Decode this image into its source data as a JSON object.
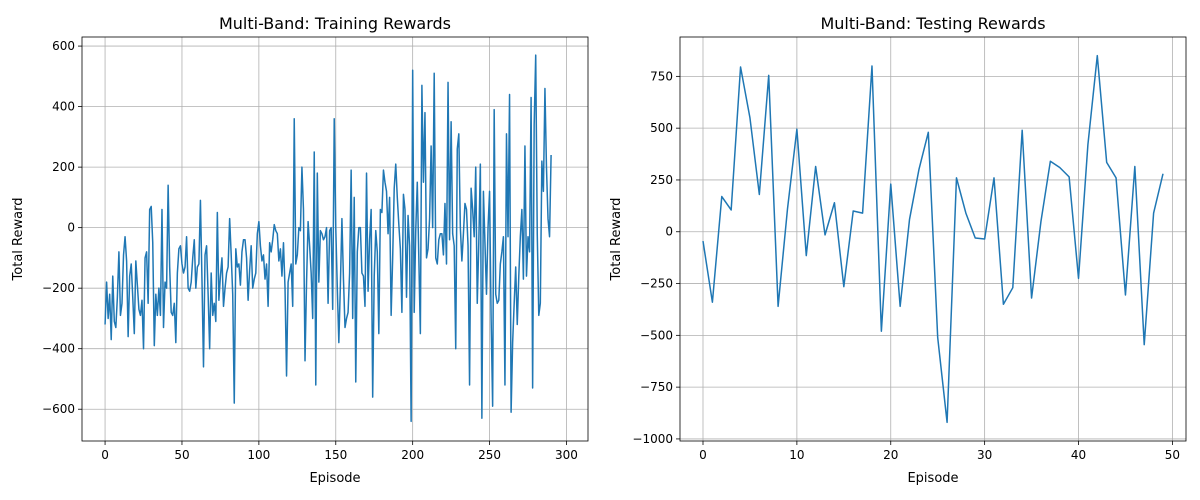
{
  "chart_data": [
    {
      "type": "line",
      "title": "Multi-Band: Training Rewards",
      "xlabel": "Episode",
      "ylabel": "Total Reward",
      "xlim": [
        -15,
        314
      ],
      "ylim": [
        -705,
        630
      ],
      "xticks": [
        0,
        50,
        100,
        150,
        200,
        250,
        300
      ],
      "yticks": [
        -600,
        -400,
        -200,
        0,
        200,
        400,
        600
      ],
      "grid": true,
      "line_color": "#1f77b4",
      "series": [
        {
          "x_start": 0,
          "values": [
            -320,
            -180,
            -300,
            -220,
            -370,
            -160,
            -310,
            -330,
            -230,
            -80,
            -290,
            -250,
            -90,
            -30,
            -110,
            -360,
            -160,
            -120,
            -230,
            -350,
            -110,
            -190,
            -270,
            -290,
            -240,
            -400,
            -100,
            -80,
            -250,
            60,
            70,
            -50,
            -390,
            -220,
            -290,
            -200,
            -290,
            60,
            -330,
            -180,
            -200,
            140,
            -130,
            -280,
            -290,
            -250,
            -380,
            -150,
            -70,
            -60,
            -120,
            -150,
            -130,
            -30,
            -200,
            -210,
            -180,
            -100,
            -40,
            -200,
            -130,
            -120,
            90,
            -170,
            -460,
            -90,
            -60,
            -220,
            -400,
            -150,
            -290,
            -250,
            -310,
            50,
            -240,
            -160,
            -100,
            -260,
            -200,
            -150,
            -130,
            30,
            -90,
            -220,
            -580,
            -70,
            -130,
            -120,
            -190,
            -80,
            -40,
            -40,
            -100,
            -240,
            -140,
            -60,
            -200,
            -170,
            -150,
            -20,
            20,
            -60,
            -110,
            -90,
            -170,
            -120,
            -260,
            -50,
            -80,
            -40,
            10,
            -10,
            -20,
            -110,
            -70,
            -160,
            -50,
            -200,
            -490,
            -180,
            -150,
            -120,
            -260,
            360,
            -120,
            -90,
            0,
            -10,
            200,
            60,
            -440,
            -180,
            20,
            -60,
            -150,
            -300,
            250,
            -520,
            180,
            -180,
            -10,
            -20,
            -40,
            -30,
            0,
            -250,
            -10,
            0,
            -270,
            360,
            0,
            -200,
            -380,
            -190,
            30,
            -170,
            -330,
            -300,
            -280,
            -150,
            190,
            -300,
            100,
            -510,
            -80,
            0,
            0,
            -150,
            -160,
            -260,
            180,
            -210,
            -40,
            60,
            -560,
            -160,
            -10,
            -80,
            -350,
            60,
            50,
            190,
            150,
            120,
            -20,
            100,
            -290,
            -100,
            130,
            210,
            100,
            10,
            -70,
            -280,
            110,
            60,
            -230,
            40,
            -60,
            -640,
            520,
            -280,
            -10,
            150,
            -100,
            -350,
            470,
            150,
            380,
            -100,
            -70,
            30,
            270,
            0,
            510,
            -100,
            -120,
            -40,
            -20,
            -20,
            -90,
            80,
            -120,
            480,
            -40,
            350,
            -20,
            -60,
            -400,
            260,
            310,
            0,
            -110,
            -20,
            80,
            60,
            -60,
            -520,
            130,
            60,
            -30,
            200,
            -250,
            -50,
            210,
            -630,
            120,
            -50,
            -220,
            0,
            120,
            -300,
            -590,
            390,
            -220,
            -250,
            -240,
            -120,
            -80,
            -30,
            -520,
            310,
            -30,
            440,
            -610,
            -380,
            -250,
            -130,
            -320,
            -160,
            -30,
            60,
            -170,
            270,
            -160,
            -30,
            -80,
            430,
            -530,
            340,
            570,
            -20,
            -290,
            -250,
            220,
            120,
            460,
            200,
            30,
            -30,
            240
          ]
        }
      ]
    },
    {
      "type": "line",
      "title": "Multi-Band: Testing Rewards",
      "xlabel": "Episode",
      "ylabel": "Total Reward",
      "xlim": [
        -2.45,
        51.45
      ],
      "ylim": [
        -1010,
        940
      ],
      "xticks": [
        0,
        10,
        20,
        30,
        40,
        50
      ],
      "yticks": [
        -1000,
        -750,
        -500,
        -250,
        0,
        250,
        500,
        750
      ],
      "grid": true,
      "line_color": "#1f77b4",
      "series": [
        {
          "x_start": 0,
          "values": [
            -45,
            -340,
            170,
            105,
            795,
            550,
            180,
            755,
            -360,
            110,
            495,
            -115,
            315,
            -15,
            140,
            -265,
            100,
            90,
            800,
            -480,
            230,
            -360,
            60,
            300,
            480,
            -510,
            -920,
            260,
            90,
            -30,
            -35,
            260,
            -350,
            -270,
            490,
            -320,
            50,
            340,
            310,
            265,
            -225,
            420,
            850,
            335,
            260,
            -305,
            315,
            -545,
            90,
            280
          ]
        }
      ]
    }
  ]
}
